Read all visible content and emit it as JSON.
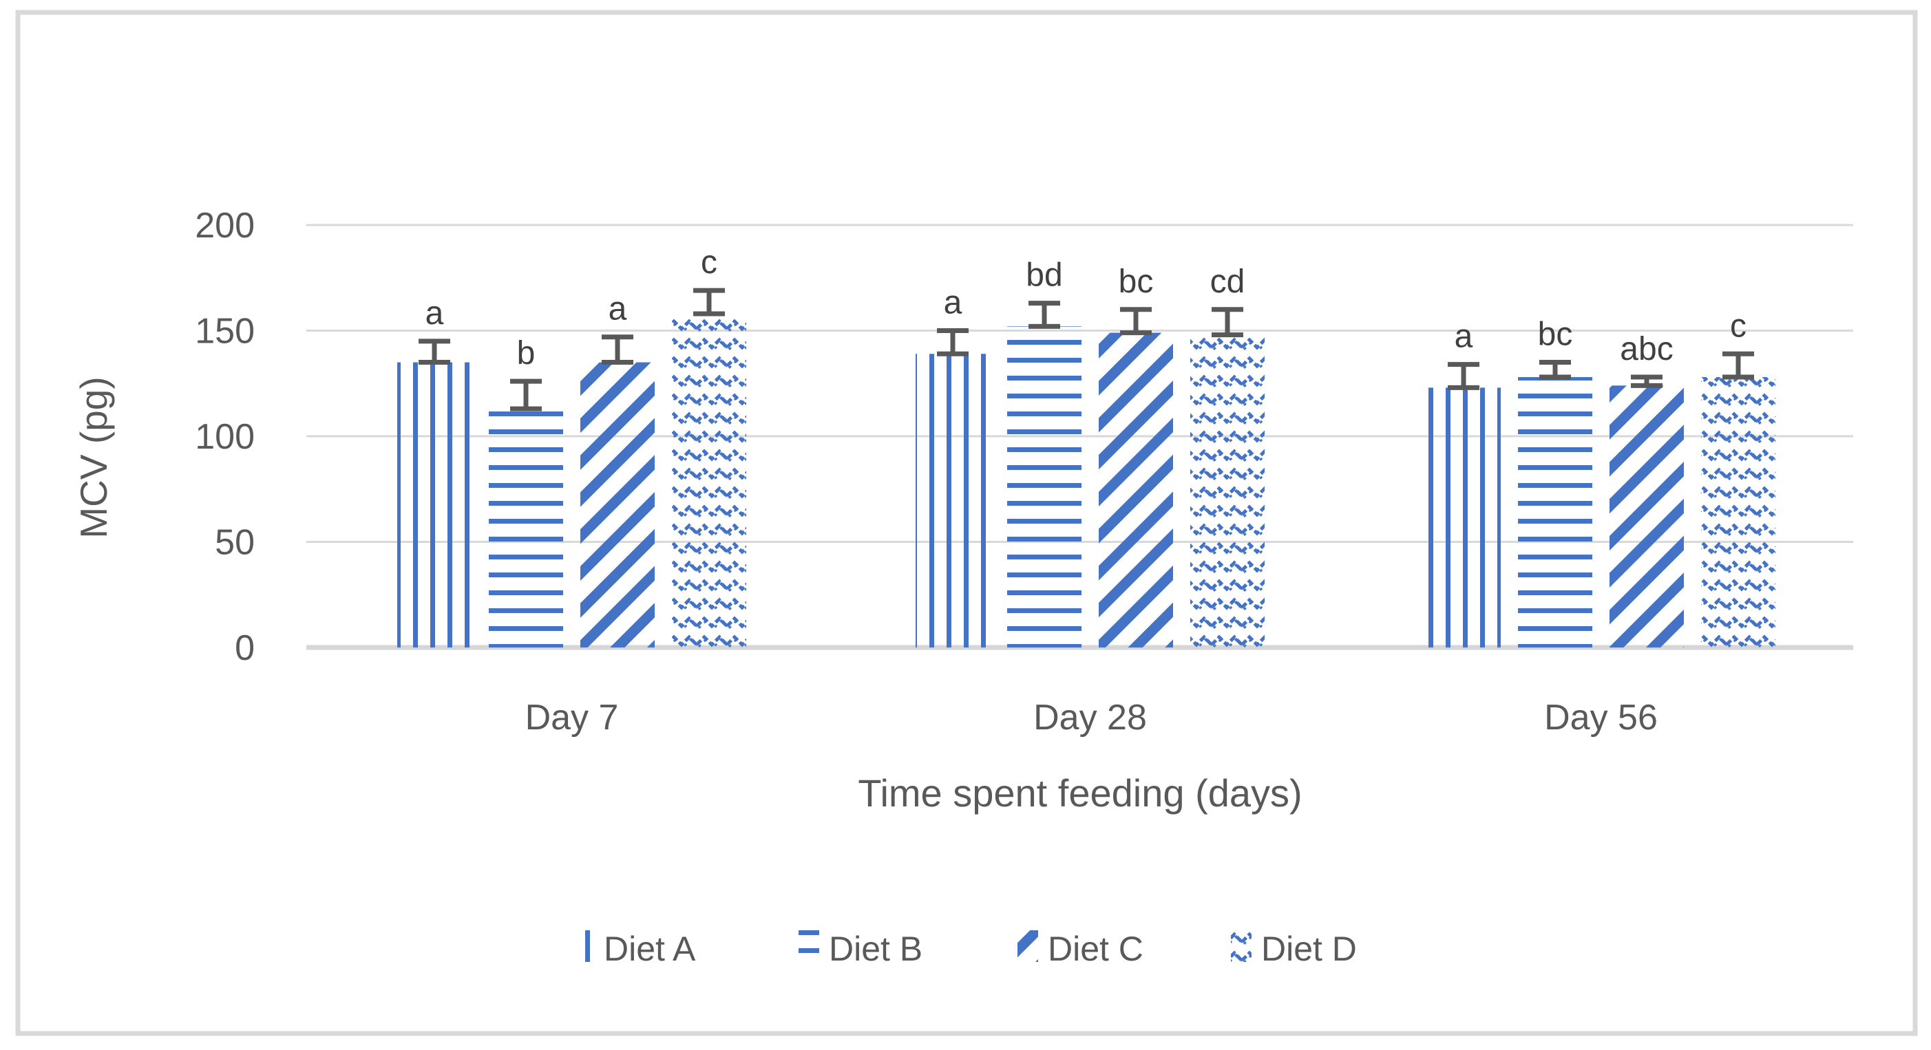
{
  "figure": {
    "background": "#ffffff",
    "border_color": "#d9d9d9"
  },
  "chart_data": {
    "type": "bar",
    "title": "",
    "xlabel": "Time spent feeding (days)",
    "ylabel": "MCV (pg)",
    "ylim": [
      0,
      200
    ],
    "yticks": [
      0,
      50,
      100,
      150,
      200
    ],
    "grid": true,
    "legend_position": "bottom",
    "categories": [
      "Day 7",
      "Day 28",
      "Day 56"
    ],
    "series": [
      {
        "name": "Diet A",
        "pattern": "vertical-stripes",
        "values": [
          135,
          139,
          123
        ],
        "errors_plus": [
          10,
          11,
          11
        ],
        "letters": [
          "a",
          "a",
          "a"
        ]
      },
      {
        "name": "Diet B",
        "pattern": "horizontal-stripes",
        "values": [
          113,
          152,
          128
        ],
        "errors_plus": [
          13,
          11,
          7
        ],
        "letters": [
          "b",
          "bd",
          "bc"
        ]
      },
      {
        "name": "Diet C",
        "pattern": "diagonal-stripes",
        "values": [
          135,
          149,
          124
        ],
        "errors_plus": [
          12,
          11,
          4
        ],
        "letters": [
          "a",
          "bc",
          "abc"
        ]
      },
      {
        "name": "Diet D",
        "pattern": "waves",
        "values": [
          158,
          148,
          128
        ],
        "errors_plus": [
          11,
          12,
          11
        ],
        "letters": [
          "c",
          "cd",
          "c"
        ]
      }
    ],
    "bar_color": "#4472c4",
    "error_bar_color": "#595959",
    "gridline_color": "#d9d9d9",
    "baseline_color": "#d6d6d6",
    "axis_text_color": "#595959",
    "letter_color": "#404040"
  }
}
